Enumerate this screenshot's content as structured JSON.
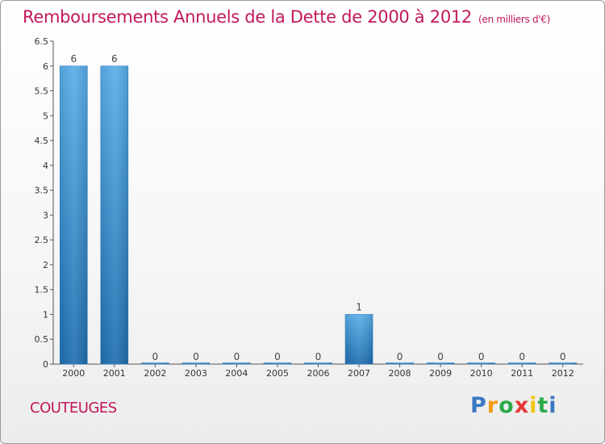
{
  "header": {
    "title": "Remboursements Annuels de la Dette de 2000 à 2012",
    "unit": "(en milliers d'€)"
  },
  "footer": {
    "commune": "COUTEUGES",
    "logo_letters": [
      "P",
      "r",
      "o",
      "x",
      "i",
      "t",
      "i"
    ],
    "logo_colors": [
      "#3a78c3",
      "#f39c12",
      "#2eaa4a",
      "#e53935",
      "#f1c40f",
      "#2eaa4a",
      "#3a78c3"
    ]
  },
  "chart_data": {
    "type": "bar",
    "title": "Remboursements Annuels de la Dette de 2000 à 2012",
    "categories": [
      "2000",
      "2001",
      "2002",
      "2003",
      "2004",
      "2005",
      "2006",
      "2007",
      "2008",
      "2009",
      "2010",
      "2011",
      "2012"
    ],
    "values": [
      6,
      6,
      0,
      0,
      0,
      0,
      0,
      1,
      0,
      0,
      0,
      0,
      0
    ],
    "data_labels": [
      "6",
      "6",
      "0",
      "0",
      "0",
      "0",
      "0",
      "1",
      "0",
      "0",
      "0",
      "0",
      "0"
    ],
    "yticks": [
      "0",
      "0.5",
      "1",
      "1.5",
      "2",
      "2.5",
      "3",
      "3.5",
      "4",
      "4.5",
      "5",
      "5.5",
      "6",
      "6.5"
    ],
    "ylim": [
      0,
      6.5
    ],
    "grid": false,
    "bar_color": "#3b8fd4"
  }
}
